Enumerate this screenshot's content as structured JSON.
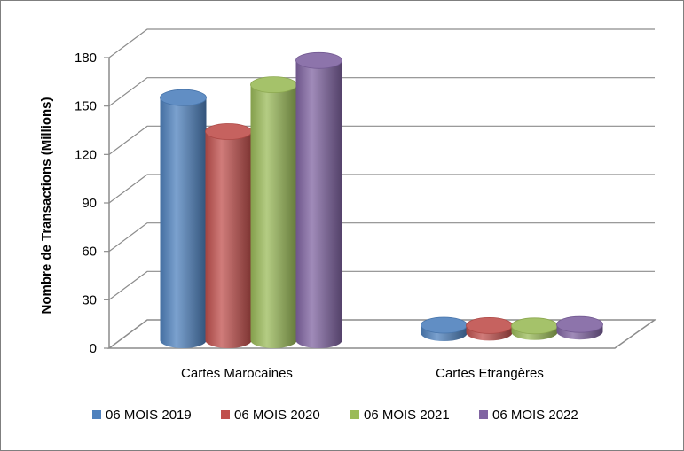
{
  "chart_data": {
    "type": "bar",
    "style": "3d-cylinder",
    "ylabel": "Nombre de Transactions (Millions)",
    "xlabel": "",
    "ylim": [
      0,
      180
    ],
    "yticks": [
      0,
      30,
      60,
      90,
      120,
      150,
      180
    ],
    "categories": [
      "Cartes Marocaines",
      "Cartes Etrangères"
    ],
    "series": [
      {
        "name": "06 MOIS 2019",
        "color": "#4f81bd",
        "values": [
          153,
          3
        ]
      },
      {
        "name": "06 MOIS 2020",
        "color": "#c0504d",
        "values": [
          132,
          2
        ]
      },
      {
        "name": "06 MOIS 2021",
        "color": "#9bbb59",
        "values": [
          161,
          1
        ]
      },
      {
        "name": "06 MOIS 2022",
        "color": "#8064a2",
        "values": [
          176,
          2
        ]
      }
    ],
    "grid": true,
    "legend_position": "bottom"
  }
}
